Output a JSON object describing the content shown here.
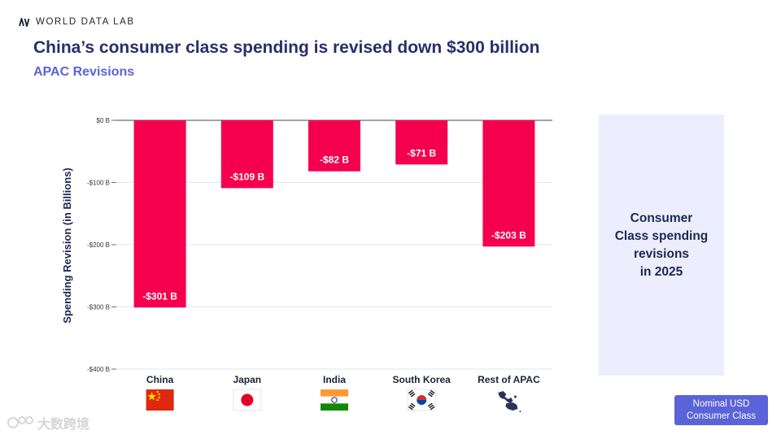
{
  "brand": {
    "name": "WORLD DATA LAB"
  },
  "header": {
    "title": "China’s consumer class spending is revised down $300 billion",
    "subtitle": "APAC Revisions"
  },
  "side_panel": {
    "text": [
      "Consumer",
      "Class spending",
      "revisions",
      "in 2025"
    ]
  },
  "badge": {
    "line1": "Nominal USD",
    "line2": "Consumer Class"
  },
  "watermark": {
    "text": "大数跨境"
  },
  "colors": {
    "bar": "#f5004f",
    "title": "#27306b",
    "accent": "#5a63d8",
    "side_bg": "#eceefd"
  },
  "chart_data": {
    "type": "bar",
    "title": "China’s consumer class spending is revised down $300 billion",
    "subtitle": "APAC Revisions",
    "xlabel": "",
    "ylabel": "Spending Revision (in Billions)",
    "ylim": [
      -400,
      0
    ],
    "yticks": [
      0,
      -100,
      -200,
      -300,
      -400
    ],
    "ytick_labels": [
      "$0 B",
      "-$100 B",
      "-$200 B",
      "-$300 B",
      "-$400 B"
    ],
    "categories": [
      "China",
      "Japan",
      "India",
      "South Korea",
      "Rest of APAC"
    ],
    "values": [
      -301,
      -109,
      -82,
      -71,
      -203
    ],
    "value_labels": [
      "-$301 B",
      "-$109 B",
      "-$82 B",
      "-$71 B",
      "-$203 B"
    ],
    "flags": [
      "china-flag-icon",
      "japan-flag-icon",
      "india-flag-icon",
      "south-korea-flag-icon",
      "rest-of-apac-map-icon"
    ],
    "grid": true
  }
}
